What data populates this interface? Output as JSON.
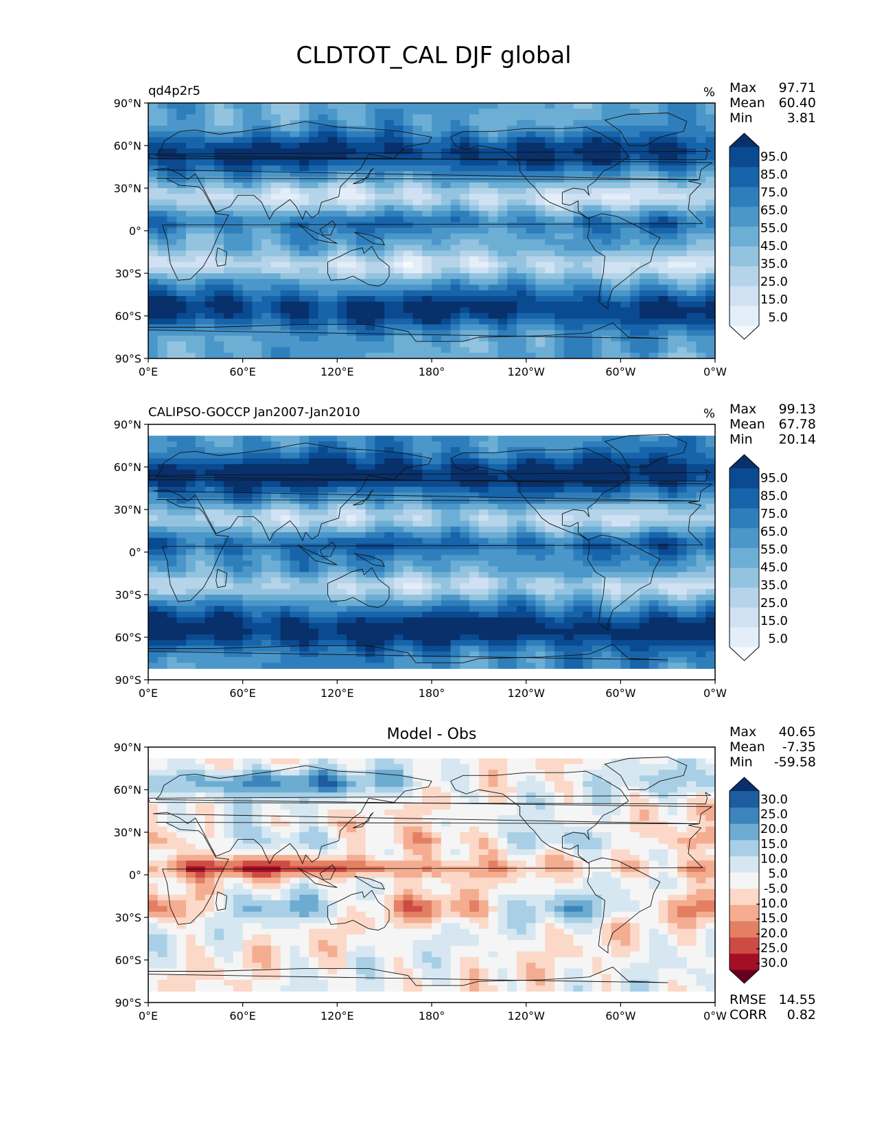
{
  "title": "CLDTOT_CAL DJF global",
  "chart_data": [
    {
      "type": "heatmap",
      "left_title": "qd4p2r5",
      "center_title": "",
      "units": "%",
      "stats": [
        {
          "label": "Max",
          "value": "97.71"
        },
        {
          "label": "Mean",
          "value": "60.40"
        },
        {
          "label": "Min",
          "value": "3.81"
        }
      ],
      "x_ticks": [
        "0°E",
        "60°E",
        "120°E",
        "180°",
        "120°W",
        "60°W",
        "0°W"
      ],
      "y_ticks": [
        "90°N",
        "60°N",
        "30°N",
        "0°",
        "30°S",
        "60°S",
        "90°S"
      ],
      "xlim": [
        0,
        360
      ],
      "ylim": [
        -90,
        90
      ],
      "colorbar": {
        "ticks": [
          "95.0",
          "85.0",
          "75.0",
          "65.0",
          "55.0",
          "45.0",
          "35.0",
          "25.0",
          "15.0",
          "5.0"
        ],
        "colors": [
          "#f7fbff",
          "#e3eef9",
          "#cfe1f2",
          "#b5d4e9",
          "#93c3df",
          "#6daed5",
          "#4b97c9",
          "#2f7ebc",
          "#1864aa",
          "#0a4a90",
          "#08306b"
        ]
      }
    },
    {
      "type": "heatmap",
      "left_title": "CALIPSO-GOCCP Jan2007-Jan2010",
      "center_title": "",
      "units": "%",
      "stats": [
        {
          "label": "Max",
          "value": "99.13"
        },
        {
          "label": "Mean",
          "value": "67.78"
        },
        {
          "label": "Min",
          "value": "20.14"
        }
      ],
      "x_ticks": [
        "0°E",
        "60°E",
        "120°E",
        "180°",
        "120°W",
        "60°W",
        "0°W"
      ],
      "y_ticks": [
        "90°N",
        "60°N",
        "30°N",
        "0°",
        "30°S",
        "60°S",
        "90°S"
      ],
      "xlim": [
        0,
        360
      ],
      "ylim": [
        -90,
        90
      ],
      "data_lat_range": [
        -82,
        82
      ],
      "colorbar": {
        "ticks": [
          "95.0",
          "85.0",
          "75.0",
          "65.0",
          "55.0",
          "45.0",
          "35.0",
          "25.0",
          "15.0",
          "5.0"
        ],
        "colors": [
          "#f7fbff",
          "#e3eef9",
          "#cfe1f2",
          "#b5d4e9",
          "#93c3df",
          "#6daed5",
          "#4b97c9",
          "#2f7ebc",
          "#1864aa",
          "#0a4a90",
          "#08306b"
        ]
      }
    },
    {
      "type": "heatmap",
      "left_title": "",
      "center_title": "Model - Obs",
      "units": "",
      "stats": [
        {
          "label": "Max",
          "value": "40.65"
        },
        {
          "label": "Mean",
          "value": "-7.35"
        },
        {
          "label": "Min",
          "value": "-59.58"
        }
      ],
      "extra_stats": [
        {
          "label": "RMSE",
          "value": "14.55"
        },
        {
          "label": "CORR",
          "value": "0.82"
        }
      ],
      "x_ticks": [
        "0°E",
        "60°E",
        "120°E",
        "180°",
        "120°W",
        "60°W",
        "0°W"
      ],
      "y_ticks": [
        "90°N",
        "60°N",
        "30°N",
        "0°",
        "30°S",
        "60°S",
        "90°S"
      ],
      "xlim": [
        0,
        360
      ],
      "ylim": [
        -90,
        90
      ],
      "data_lat_range": [
        -82,
        82
      ],
      "colorbar": {
        "ticks": [
          "30.0",
          "25.0",
          "20.0",
          "15.0",
          "10.0",
          "5.0",
          "-5.0",
          "-10.0",
          "-15.0",
          "-20.0",
          "-25.0",
          "-30.0"
        ],
        "colors": [
          "#67001f",
          "#a50f26",
          "#ce4a45",
          "#e37f63",
          "#f4ad90",
          "#fbd8c8",
          "#f5f5f5",
          "#d6e7f1",
          "#a8cfe5",
          "#6dacd1",
          "#3b85bc",
          "#1c5c9f",
          "#08306b"
        ]
      }
    }
  ]
}
